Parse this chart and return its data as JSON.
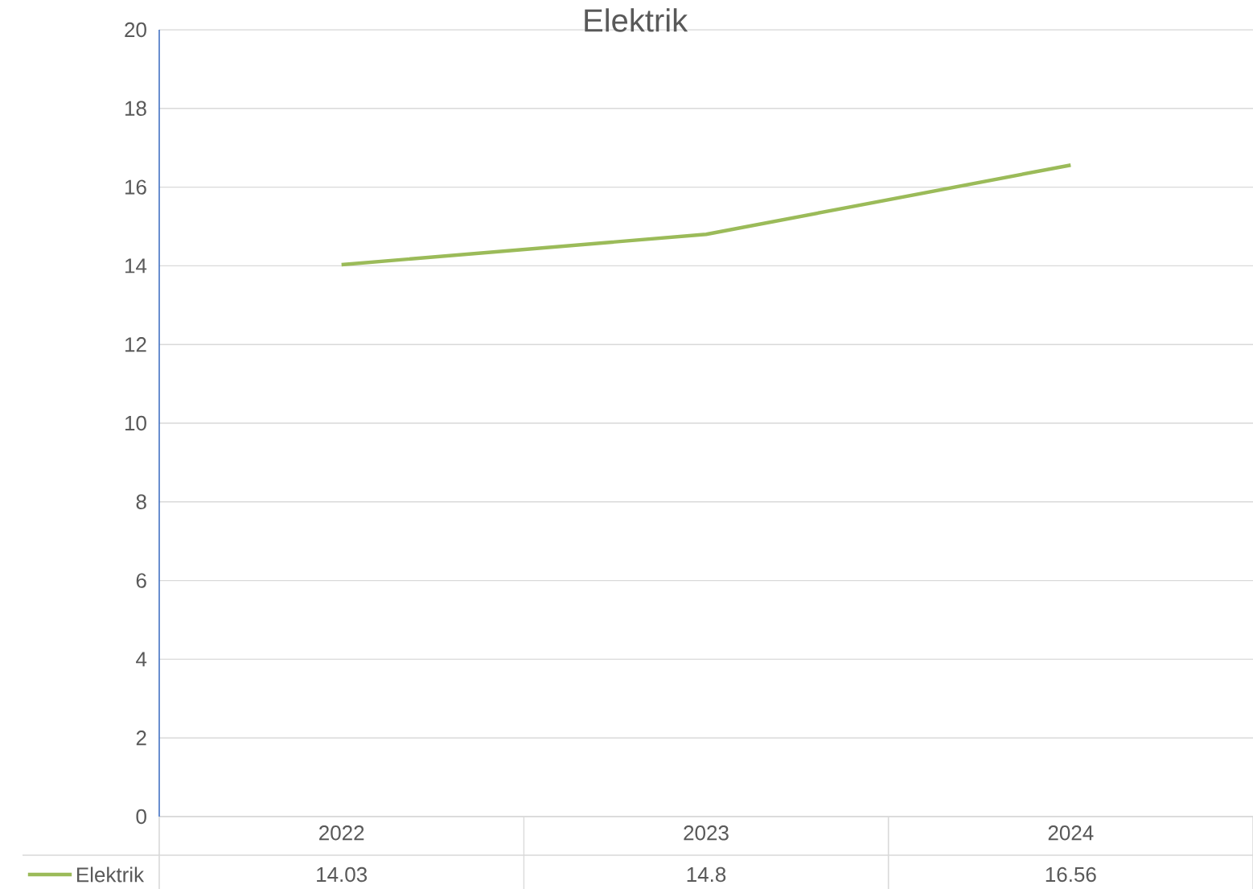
{
  "chart_data": {
    "type": "line",
    "title": "Elektrik",
    "categories": [
      "2022",
      "2023",
      "2024"
    ],
    "series": [
      {
        "name": "Elektrik",
        "color": "#9bbb59",
        "values": [
          14.03,
          14.8,
          16.56
        ]
      }
    ],
    "ylim": [
      0,
      20
    ],
    "yticks": [
      0,
      2,
      4,
      6,
      8,
      10,
      12,
      14,
      16,
      18,
      20
    ],
    "grid": "y",
    "marker": "none",
    "line_style": "solid",
    "data_labels": true
  }
}
